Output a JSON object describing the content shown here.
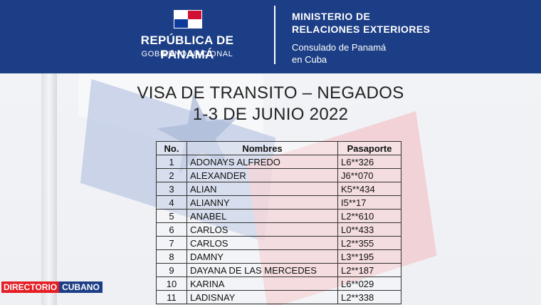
{
  "header": {
    "republic": "REPÚBLICA DE PANAMÁ",
    "government": "GOBIERNO NACIONAL",
    "ministry_line1": "MINISTERIO DE",
    "ministry_line2": "RELACIONES EXTERIORES",
    "consulate_line1": "Consulado de Panamá",
    "consulate_line2": "en Cuba"
  },
  "title": {
    "line1": "VISA DE TRANSITO – NEGADOS",
    "line2": "1-3 DE JUNIO 2022"
  },
  "table": {
    "headers": [
      "No.",
      "Nombres",
      "Pasaporte"
    ],
    "rows": [
      {
        "no": "1",
        "name": "ADONAYS ALFREDO",
        "passport": "L6**326"
      },
      {
        "no": "2",
        "name": "ALEXANDER",
        "passport": "J6**070"
      },
      {
        "no": "3",
        "name": "ALIAN",
        "passport": "K5**434"
      },
      {
        "no": "4",
        "name": "ALIANNY",
        "passport": "I5**17"
      },
      {
        "no": "5",
        "name": "ANABEL",
        "passport": "L2**610"
      },
      {
        "no": "6",
        "name": "CARLOS",
        "passport": "L0**433"
      },
      {
        "no": "7",
        "name": "CARLOS",
        "passport": "L2**355"
      },
      {
        "no": "8",
        "name": "DAMNY",
        "passport": "L3**195"
      },
      {
        "no": "9",
        "name": "DAYANA DE LAS MERCEDES",
        "passport": "L2**187"
      },
      {
        "no": "10",
        "name": "KARINA",
        "passport": "L6**029"
      },
      {
        "no": "11",
        "name": "LADISNAY",
        "passport": "L2**338"
      }
    ]
  },
  "watermark": {
    "part1": "DIRECTORIO",
    "part2": "CUBANO"
  },
  "colors": {
    "header_bg": "#1c3e86",
    "flag_red": "#d21034",
    "flag_blue": "#0d3b9c"
  }
}
